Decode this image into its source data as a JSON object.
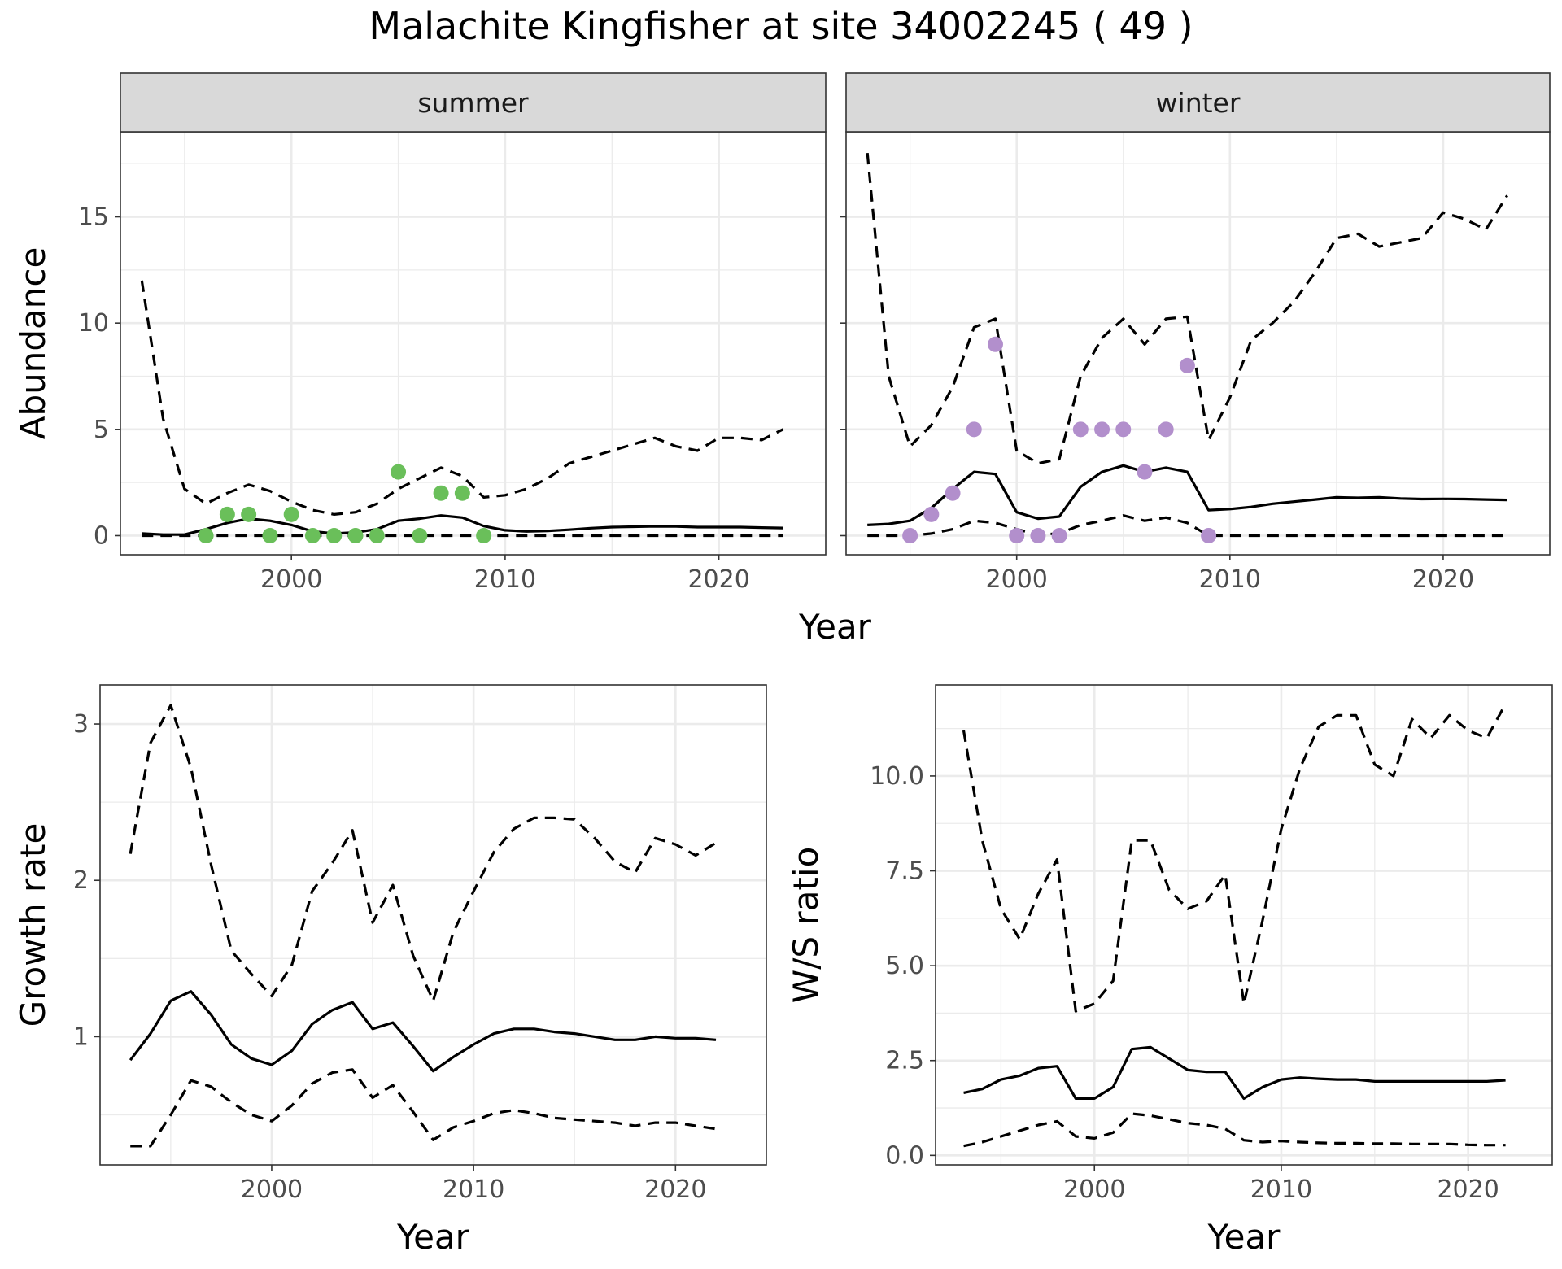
{
  "title": "Malachite Kingfisher at site 34002245 ( 49 )",
  "colors": {
    "summer_points": "#6ABF5A",
    "winter_points": "#B28FCC",
    "strip_fill": "#D9D9D9",
    "grid": "#EBEBEB",
    "line": "#000000"
  },
  "chart_data": [
    {
      "type": "line",
      "panel": "summer",
      "xlabel": "Year",
      "ylabel": "Abundance",
      "xlim": [
        1992,
        2025
      ],
      "ylim": [
        -0.9,
        19
      ],
      "xticks": [
        2000,
        2010,
        2020
      ],
      "yticks": [
        0,
        5,
        10,
        15
      ],
      "grid": true,
      "series": [
        {
          "style": "solid",
          "x": [
            1993,
            1994,
            1995,
            1996,
            1997,
            1998,
            1999,
            2000,
            2001,
            2002,
            2003,
            2004,
            2005,
            2006,
            2007,
            2008,
            2009,
            2010,
            2011,
            2012,
            2013,
            2014,
            2015,
            2016,
            2017,
            2018,
            2019,
            2020,
            2021,
            2022,
            2023
          ],
          "y": [
            0.1,
            0.05,
            0.05,
            0.3,
            0.6,
            0.8,
            0.7,
            0.5,
            0.2,
            0.1,
            0.15,
            0.3,
            0.7,
            0.8,
            0.95,
            0.85,
            0.45,
            0.25,
            0.2,
            0.22,
            0.28,
            0.35,
            0.4,
            0.42,
            0.44,
            0.43,
            0.4,
            0.4,
            0.4,
            0.38,
            0.36
          ]
        },
        {
          "style": "dashed",
          "x": [
            1993,
            1994,
            1995,
            1996,
            1997,
            1998,
            1999,
            2000,
            2001,
            2002,
            2003,
            2004,
            2005,
            2006,
            2007,
            2008,
            2009,
            2010,
            2011,
            2012,
            2013,
            2014,
            2015,
            2016,
            2017,
            2018,
            2019,
            2020,
            2021,
            2022,
            2023
          ],
          "y": [
            12,
            5.5,
            2.2,
            1.5,
            2,
            2.4,
            2.1,
            1.6,
            1.2,
            1,
            1.1,
            1.5,
            2.2,
            2.7,
            3.2,
            2.8,
            1.8,
            1.9,
            2.2,
            2.7,
            3.4,
            3.7,
            4,
            4.3,
            4.6,
            4.2,
            4,
            4.6,
            4.6,
            4.5,
            5
          ]
        },
        {
          "style": "dashed",
          "x": [
            1993,
            2023
          ],
          "y": [
            0,
            0
          ]
        }
      ],
      "points": {
        "x": [
          1996,
          1997,
          1998,
          1999,
          2000,
          2001,
          2002,
          2003,
          2004,
          2005,
          2006,
          2007,
          2008,
          2009
        ],
        "y": [
          0,
          1,
          1,
          0,
          1,
          0,
          0,
          0,
          0,
          3,
          0,
          2,
          2,
          0
        ]
      }
    },
    {
      "type": "line",
      "panel": "winter",
      "xlabel": "Year",
      "ylabel": "Abundance",
      "xlim": [
        1992,
        2025
      ],
      "ylim": [
        -0.9,
        19
      ],
      "xticks": [
        2000,
        2010,
        2020
      ],
      "yticks": [
        0,
        5,
        10,
        15
      ],
      "grid": true,
      "series": [
        {
          "style": "solid",
          "x": [
            1993,
            1994,
            1995,
            1996,
            1997,
            1998,
            1999,
            2000,
            2001,
            2002,
            2003,
            2004,
            2005,
            2006,
            2007,
            2008,
            2009,
            2010,
            2011,
            2012,
            2013,
            2014,
            2015,
            2016,
            2017,
            2018,
            2019,
            2020,
            2021,
            2022,
            2023
          ],
          "y": [
            0.5,
            0.55,
            0.7,
            1.3,
            2.2,
            3,
            2.9,
            1.1,
            0.8,
            0.9,
            2.3,
            3,
            3.3,
            3,
            3.2,
            3,
            1.2,
            1.25,
            1.35,
            1.5,
            1.6,
            1.7,
            1.8,
            1.78,
            1.8,
            1.75,
            1.72,
            1.73,
            1.72,
            1.7,
            1.68
          ]
        },
        {
          "style": "dashed",
          "x": [
            1993,
            1994,
            1995,
            1996,
            1997,
            1998,
            1999,
            2000,
            2001,
            2002,
            2003,
            2004,
            2005,
            2006,
            2007,
            2008,
            2009,
            2010,
            2011,
            2012,
            2013,
            2014,
            2015,
            2016,
            2017,
            2018,
            2019,
            2020,
            2021,
            2022,
            2023
          ],
          "y": [
            18,
            7.5,
            4.2,
            5.2,
            7,
            9.8,
            10.2,
            4,
            3.4,
            3.6,
            7.5,
            9.3,
            10.2,
            9,
            10.2,
            10.3,
            4.5,
            6.5,
            9.2,
            10,
            11,
            12.4,
            14,
            14.2,
            13.6,
            13.8,
            14,
            15.2,
            14.9,
            14.4,
            16
          ]
        },
        {
          "style": "dashed",
          "x": [
            1993,
            1994,
            1995,
            1996,
            1997,
            1998,
            1999,
            2000,
            2001,
            2002,
            2003,
            2004,
            2005,
            2006,
            2007,
            2008,
            2009,
            2010,
            2015,
            2020,
            2023
          ],
          "y": [
            0,
            0,
            0,
            0.1,
            0.3,
            0.7,
            0.6,
            0.3,
            0.05,
            0.1,
            0.5,
            0.7,
            0.95,
            0.7,
            0.85,
            0.6,
            0,
            0,
            0,
            0,
            0
          ]
        }
      ],
      "points": {
        "x": [
          1995,
          1996,
          1997,
          1998,
          1999,
          2000,
          2001,
          2002,
          2003,
          2004,
          2005,
          2006,
          2007,
          2008,
          2009
        ],
        "y": [
          0,
          1,
          2,
          5,
          9,
          0,
          0,
          0,
          5,
          5,
          5,
          3,
          5,
          8,
          0
        ]
      }
    },
    {
      "type": "line",
      "panel": "growth",
      "xlabel": "Year",
      "ylabel": "Growth rate",
      "xlim": [
        1991.5,
        2024.5
      ],
      "ylim": [
        0.18,
        3.25
      ],
      "xticks": [
        2000,
        2010,
        2020
      ],
      "yticks": [
        1,
        2,
        3
      ],
      "grid": true,
      "series": [
        {
          "style": "solid",
          "x": [
            1993,
            1994,
            1995,
            1996,
            1997,
            1998,
            1999,
            2000,
            2001,
            2002,
            2003,
            2004,
            2005,
            2006,
            2007,
            2008,
            2009,
            2010,
            2011,
            2012,
            2013,
            2014,
            2015,
            2016,
            2017,
            2018,
            2019,
            2020,
            2021,
            2022
          ],
          "y": [
            0.85,
            1.02,
            1.23,
            1.29,
            1.14,
            0.95,
            0.86,
            0.82,
            0.91,
            1.08,
            1.17,
            1.22,
            1.05,
            1.09,
            0.94,
            0.78,
            0.87,
            0.95,
            1.02,
            1.05,
            1.05,
            1.03,
            1.02,
            1.0,
            0.98,
            0.98,
            1.0,
            0.99,
            0.99,
            0.98
          ]
        },
        {
          "style": "dashed",
          "x": [
            1993,
            1994,
            1995,
            1996,
            1997,
            1998,
            1999,
            2000,
            2001,
            2002,
            2003,
            2004,
            2005,
            2006,
            2007,
            2008,
            2009,
            2010,
            2011,
            2012,
            2013,
            2014,
            2015,
            2016,
            2017,
            2018,
            2019,
            2020,
            2021,
            2022
          ],
          "y": [
            2.17,
            2.88,
            3.12,
            2.72,
            2.1,
            1.55,
            1.4,
            1.26,
            1.46,
            1.93,
            2.11,
            2.32,
            1.73,
            1.97,
            1.52,
            1.23,
            1.67,
            1.93,
            2.18,
            2.33,
            2.4,
            2.4,
            2.39,
            2.27,
            2.12,
            2.05,
            2.27,
            2.23,
            2.16,
            2.24
          ]
        },
        {
          "style": "dashed",
          "x": [
            1993,
            1994,
            1995,
            1996,
            1997,
            1998,
            1999,
            2000,
            2001,
            2002,
            2003,
            2004,
            2005,
            2006,
            2007,
            2008,
            2009,
            2010,
            2011,
            2012,
            2013,
            2014,
            2015,
            2016,
            2017,
            2018,
            2019,
            2020,
            2021,
            2022
          ],
          "y": [
            0.3,
            0.3,
            0.5,
            0.72,
            0.68,
            0.58,
            0.5,
            0.46,
            0.56,
            0.7,
            0.77,
            0.79,
            0.61,
            0.69,
            0.52,
            0.34,
            0.42,
            0.46,
            0.51,
            0.53,
            0.51,
            0.48,
            0.47,
            0.46,
            0.45,
            0.43,
            0.45,
            0.45,
            0.43,
            0.41
          ]
        }
      ]
    },
    {
      "type": "line",
      "panel": "ws_ratio",
      "xlabel": "Year",
      "ylabel": "W/S ratio",
      "xlim": [
        1991.5,
        2024.5
      ],
      "ylim": [
        -0.25,
        12.4
      ],
      "xticks": [
        2000,
        2010,
        2020
      ],
      "yticks": [
        0.0,
        2.5,
        5.0,
        7.5,
        10.0
      ],
      "ytick_labels": [
        "0.0",
        "2.5",
        "5.0",
        "7.5",
        "10.0"
      ],
      "grid": true,
      "series": [
        {
          "style": "solid",
          "x": [
            1993,
            1994,
            1995,
            1996,
            1997,
            1998,
            1999,
            2000,
            2001,
            2002,
            2003,
            2004,
            2005,
            2006,
            2007,
            2008,
            2009,
            2010,
            2011,
            2012,
            2013,
            2014,
            2015,
            2016,
            2017,
            2018,
            2019,
            2020,
            2021,
            2022
          ],
          "y": [
            1.65,
            1.75,
            2.0,
            2.1,
            2.3,
            2.35,
            1.5,
            1.5,
            1.8,
            2.8,
            2.85,
            2.55,
            2.25,
            2.2,
            2.2,
            1.5,
            1.8,
            2.0,
            2.05,
            2.02,
            2.0,
            2.0,
            1.95,
            1.95,
            1.95,
            1.95,
            1.95,
            1.95,
            1.95,
            1.98
          ]
        },
        {
          "style": "dashed",
          "x": [
            1993,
            1994,
            1995,
            1996,
            1997,
            1998,
            1999,
            2000,
            2001,
            2002,
            2003,
            2004,
            2005,
            2006,
            2007,
            2008,
            2009,
            2010,
            2011,
            2012,
            2013,
            2014,
            2015,
            2016,
            2017,
            2018,
            2019,
            2020,
            2021,
            2022
          ],
          "y": [
            11.2,
            8.3,
            6.5,
            5.7,
            6.9,
            7.8,
            3.8,
            4.0,
            4.6,
            8.3,
            8.3,
            7.0,
            6.5,
            6.7,
            7.4,
            4.0,
            6.2,
            8.6,
            10.2,
            11.3,
            11.6,
            11.6,
            10.3,
            10.0,
            11.5,
            11.0,
            11.6,
            11.2,
            11.0,
            11.9
          ]
        },
        {
          "style": "dashed",
          "x": [
            1993,
            1994,
            1995,
            1996,
            1997,
            1998,
            1999,
            2000,
            2001,
            2002,
            2003,
            2004,
            2005,
            2006,
            2007,
            2008,
            2009,
            2010,
            2011,
            2012,
            2013,
            2014,
            2015,
            2016,
            2017,
            2018,
            2019,
            2020,
            2021,
            2022
          ],
          "y": [
            0.25,
            0.35,
            0.5,
            0.65,
            0.8,
            0.9,
            0.5,
            0.45,
            0.6,
            1.1,
            1.05,
            0.95,
            0.85,
            0.8,
            0.7,
            0.4,
            0.35,
            0.38,
            0.35,
            0.33,
            0.32,
            0.32,
            0.31,
            0.31,
            0.3,
            0.3,
            0.3,
            0.28,
            0.27,
            0.27
          ]
        }
      ]
    }
  ]
}
